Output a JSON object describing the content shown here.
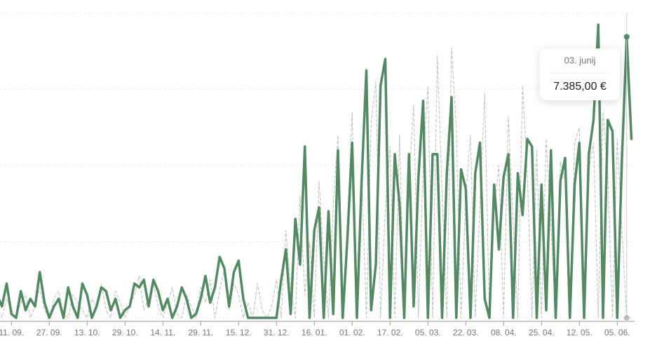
{
  "chart_data": {
    "type": "line",
    "categories": [
      null,
      null,
      null,
      "11. 09.",
      null,
      null,
      null,
      null,
      null,
      null,
      null,
      "27. 09.",
      null,
      null,
      null,
      null,
      null,
      null,
      null,
      "13. 10.",
      null,
      null,
      null,
      null,
      null,
      null,
      null,
      "29. 10.",
      null,
      null,
      null,
      null,
      null,
      null,
      null,
      "14. 11.",
      null,
      null,
      null,
      null,
      null,
      null,
      null,
      "29. 11.",
      null,
      null,
      null,
      null,
      null,
      null,
      null,
      "15. 12.",
      null,
      null,
      null,
      null,
      null,
      null,
      null,
      "31. 12.",
      null,
      null,
      null,
      null,
      null,
      null,
      null,
      "16. 01.",
      null,
      null,
      null,
      null,
      null,
      null,
      null,
      "01. 02.",
      null,
      null,
      null,
      null,
      null,
      null,
      null,
      "17. 02.",
      null,
      null,
      null,
      null,
      null,
      null,
      null,
      "05. 03.",
      null,
      null,
      null,
      null,
      null,
      null,
      null,
      "22. 03.",
      null,
      null,
      null,
      null,
      null,
      null,
      null,
      "08. 04.",
      null,
      null,
      null,
      null,
      null,
      null,
      null,
      "25. 04.",
      null,
      null,
      null,
      null,
      null,
      null,
      null,
      "12. 05.",
      null,
      null,
      null,
      null,
      null,
      null,
      null,
      "05. 06.",
      null,
      null,
      null
    ],
    "series": [
      {
        "color": "#538a63",
        "style": "solid",
        "values": [
          600,
          300,
          900,
          100,
          0,
          700,
          200,
          500,
          300,
          1200,
          400,
          0,
          300,
          500,
          0,
          800,
          300,
          0,
          900,
          600,
          0,
          300,
          800,
          700,
          200,
          500,
          0,
          200,
          300,
          900,
          800,
          1000,
          300,
          1000,
          700,
          200,
          500,
          0,
          300,
          800,
          500,
          0,
          100,
          500,
          1100,
          400,
          800,
          1600,
          1300,
          300,
          1200,
          1500,
          500,
          0,
          0,
          0,
          0,
          0,
          0,
          0,
          1000,
          1800,
          100,
          2600,
          1400,
          4500,
          0,
          2300,
          2900,
          0,
          2800,
          100,
          4400,
          0,
          2100,
          4600,
          0,
          3600,
          6500,
          200,
          1400,
          6100,
          6800,
          0,
          4300,
          3000,
          0,
          4300,
          300,
          3700,
          5700,
          0,
          4300,
          4300,
          0,
          3800,
          5800,
          0,
          3900,
          3400,
          0,
          3800,
          4600,
          500,
          0,
          3500,
          1800,
          3700,
          4300,
          0,
          3800,
          2700,
          4700,
          4500,
          0,
          3500,
          200,
          4400,
          0,
          3600,
          4200,
          0,
          3500,
          4600,
          0,
          4300,
          5200,
          7700,
          0,
          5200,
          4900,
          0,
          4200,
          7385,
          4700
        ]
      },
      {
        "color": "#bdbdbd",
        "style": "dashed",
        "values": [
          300,
          0,
          500,
          200,
          0,
          400,
          600,
          0,
          300,
          800,
          200,
          0,
          500,
          700,
          100,
          0,
          600,
          400,
          200,
          0,
          500,
          300,
          900,
          200,
          0,
          700,
          400,
          0,
          300,
          600,
          1100,
          200,
          500,
          900,
          300,
          0,
          400,
          800,
          100,
          0,
          600,
          300,
          0,
          800,
          400,
          1000,
          0,
          700,
          1300,
          200,
          900,
          600,
          0,
          400,
          0,
          900,
          200,
          0,
          300,
          1000,
          0,
          2300,
          800,
          0,
          3200,
          600,
          2000,
          0,
          3600,
          1500,
          0,
          3000,
          4800,
          0,
          2500,
          5400,
          0,
          3900,
          0,
          5100,
          6200,
          0,
          2800,
          4500,
          0,
          4800,
          0,
          3600,
          5600,
          0,
          4000,
          6100,
          0,
          6900,
          3300,
          0,
          7100,
          5000,
          0,
          3200,
          4800,
          0,
          3000,
          5900,
          0,
          2800,
          4000,
          0,
          5300,
          2500,
          0,
          6100,
          3800,
          0,
          4400,
          0,
          4700,
          2400,
          0,
          4100,
          3600,
          0,
          4600,
          5000,
          0,
          3900,
          4600,
          0,
          5400,
          3800,
          0,
          4700,
          2300,
          0,
          0
        ]
      }
    ],
    "ylim": [
      0,
      8000
    ],
    "yticks": [
      0,
      2000,
      4000,
      6000,
      8000
    ],
    "grid": true,
    "tooltip": {
      "title": "03. junij",
      "value_label": "7.385,00 €"
    }
  }
}
